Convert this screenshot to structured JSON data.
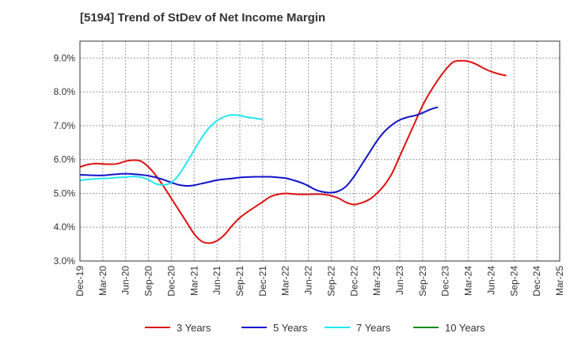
{
  "title": "[5194]  Trend of StDev of Net Income Margin",
  "chart_data": {
    "type": "line",
    "title": "[5194]  Trend of StDev of Net Income Margin",
    "xlabel": "",
    "ylabel": "",
    "ylim": [
      3.0,
      9.5
    ],
    "yticks": [
      "3.0%",
      "4.0%",
      "5.0%",
      "6.0%",
      "7.0%",
      "8.0%",
      "9.0%"
    ],
    "ytick_values": [
      3.0,
      4.0,
      5.0,
      6.0,
      7.0,
      8.0,
      9.0
    ],
    "x_ticks": [
      "Dec-19",
      "Mar-20",
      "Jun-20",
      "Sep-20",
      "Dec-20",
      "Mar-21",
      "Jun-21",
      "Sep-21",
      "Dec-21",
      "Mar-22",
      "Jun-22",
      "Sep-22",
      "Dec-22",
      "Mar-23",
      "Jun-23",
      "Sep-23",
      "Dec-23",
      "Mar-24",
      "Jun-24",
      "Sep-24",
      "Dec-24",
      "Mar-25"
    ],
    "grid": true,
    "legend_position": "bottom",
    "series": [
      {
        "name": "3 Years",
        "color": "#dd1111",
        "points": [
          [
            "Dec-19",
            5.78
          ],
          [
            "Jan-20",
            5.85
          ],
          [
            "Feb-20",
            5.88
          ],
          [
            "Mar-20",
            5.87
          ],
          [
            "Apr-20",
            5.86
          ],
          [
            "May-20",
            5.88
          ],
          [
            "Jun-20",
            5.95
          ],
          [
            "Jul-20",
            5.98
          ],
          [
            "Aug-20",
            5.95
          ],
          [
            "Sep-20",
            5.78
          ],
          [
            "Oct-20",
            5.52
          ],
          [
            "Nov-20",
            5.2
          ],
          [
            "Dec-20",
            4.85
          ],
          [
            "Jan-21",
            4.5
          ],
          [
            "Feb-21",
            4.15
          ],
          [
            "Mar-21",
            3.8
          ],
          [
            "Apr-21",
            3.58
          ],
          [
            "May-21",
            3.53
          ],
          [
            "Jun-21",
            3.6
          ],
          [
            "Jul-21",
            3.78
          ],
          [
            "Aug-21",
            4.05
          ],
          [
            "Sep-21",
            4.28
          ],
          [
            "Oct-21",
            4.45
          ],
          [
            "Nov-21",
            4.6
          ],
          [
            "Dec-21",
            4.75
          ],
          [
            "Jan-22",
            4.9
          ],
          [
            "Feb-22",
            4.97
          ],
          [
            "Mar-22",
            5.0
          ],
          [
            "Apr-22",
            4.98
          ],
          [
            "May-22",
            4.97
          ],
          [
            "Jun-22",
            4.97
          ],
          [
            "Jul-22",
            4.98
          ],
          [
            "Aug-22",
            4.97
          ],
          [
            "Sep-22",
            4.93
          ],
          [
            "Oct-22",
            4.85
          ],
          [
            "Nov-22",
            4.73
          ],
          [
            "Dec-22",
            4.67
          ],
          [
            "Jan-23",
            4.72
          ],
          [
            "Feb-23",
            4.82
          ],
          [
            "Mar-23",
            5.0
          ],
          [
            "Apr-23",
            5.25
          ],
          [
            "May-23",
            5.6
          ],
          [
            "Jun-23",
            6.1
          ],
          [
            "Jul-23",
            6.6
          ],
          [
            "Aug-23",
            7.1
          ],
          [
            "Sep-23",
            7.6
          ],
          [
            "Oct-23",
            8.0
          ],
          [
            "Nov-23",
            8.35
          ],
          [
            "Dec-23",
            8.65
          ],
          [
            "Jan-24",
            8.88
          ],
          [
            "Feb-24",
            8.92
          ],
          [
            "Mar-24",
            8.9
          ],
          [
            "Apr-24",
            8.82
          ],
          [
            "May-24",
            8.7
          ],
          [
            "Jun-24",
            8.6
          ],
          [
            "Jul-24",
            8.53
          ],
          [
            "Aug-24",
            8.48
          ]
        ]
      },
      {
        "name": "5 Years",
        "color": "#1111cc",
        "points": [
          [
            "Dec-19",
            5.55
          ],
          [
            "Jan-20",
            5.54
          ],
          [
            "Feb-20",
            5.53
          ],
          [
            "Mar-20",
            5.53
          ],
          [
            "Apr-20",
            5.55
          ],
          [
            "May-20",
            5.57
          ],
          [
            "Jun-20",
            5.58
          ],
          [
            "Jul-20",
            5.57
          ],
          [
            "Aug-20",
            5.55
          ],
          [
            "Sep-20",
            5.52
          ],
          [
            "Oct-20",
            5.47
          ],
          [
            "Nov-20",
            5.4
          ],
          [
            "Dec-20",
            5.32
          ],
          [
            "Jan-21",
            5.25
          ],
          [
            "Feb-21",
            5.22
          ],
          [
            "Mar-21",
            5.24
          ],
          [
            "Apr-21",
            5.29
          ],
          [
            "May-21",
            5.34
          ],
          [
            "Jun-21",
            5.39
          ],
          [
            "Jul-21",
            5.42
          ],
          [
            "Aug-21",
            5.44
          ],
          [
            "Sep-21",
            5.47
          ],
          [
            "Oct-21",
            5.48
          ],
          [
            "Nov-21",
            5.49
          ],
          [
            "Dec-21",
            5.49
          ],
          [
            "Jan-22",
            5.49
          ],
          [
            "Feb-22",
            5.47
          ],
          [
            "Mar-22",
            5.45
          ],
          [
            "Apr-22",
            5.39
          ],
          [
            "May-22",
            5.32
          ],
          [
            "Jun-22",
            5.22
          ],
          [
            "Jul-22",
            5.1
          ],
          [
            "Aug-22",
            5.04
          ],
          [
            "Sep-22",
            5.02
          ],
          [
            "Oct-22",
            5.07
          ],
          [
            "Nov-22",
            5.22
          ],
          [
            "Dec-22",
            5.5
          ],
          [
            "Jan-23",
            5.85
          ],
          [
            "Feb-23",
            6.2
          ],
          [
            "Mar-23",
            6.55
          ],
          [
            "Apr-23",
            6.83
          ],
          [
            "May-23",
            7.03
          ],
          [
            "Jun-23",
            7.17
          ],
          [
            "Jul-23",
            7.25
          ],
          [
            "Aug-23",
            7.3
          ],
          [
            "Sep-23",
            7.38
          ],
          [
            "Oct-23",
            7.48
          ],
          [
            "Nov-23",
            7.55
          ]
        ]
      },
      {
        "name": "7 Years",
        "color": "#22e6f0",
        "points": [
          [
            "Dec-19",
            5.38
          ],
          [
            "Jan-20",
            5.41
          ],
          [
            "Feb-20",
            5.43
          ],
          [
            "Mar-20",
            5.44
          ],
          [
            "Apr-20",
            5.45
          ],
          [
            "May-20",
            5.47
          ],
          [
            "Jun-20",
            5.48
          ],
          [
            "Jul-20",
            5.5
          ],
          [
            "Aug-20",
            5.48
          ],
          [
            "Sep-20",
            5.4
          ],
          [
            "Oct-20",
            5.28
          ],
          [
            "Nov-20",
            5.25
          ],
          [
            "Dec-20",
            5.32
          ],
          [
            "Jan-21",
            5.55
          ],
          [
            "Feb-21",
            5.9
          ],
          [
            "Mar-21",
            6.28
          ],
          [
            "Apr-21",
            6.65
          ],
          [
            "May-21",
            6.95
          ],
          [
            "Jun-21",
            7.15
          ],
          [
            "Jul-21",
            7.27
          ],
          [
            "Aug-21",
            7.32
          ],
          [
            "Sep-21",
            7.3
          ],
          [
            "Oct-21",
            7.25
          ],
          [
            "Nov-21",
            7.22
          ],
          [
            "Dec-21",
            7.18
          ]
        ]
      },
      {
        "name": "10 Years",
        "color": "#1a8a1a",
        "points": []
      }
    ]
  }
}
